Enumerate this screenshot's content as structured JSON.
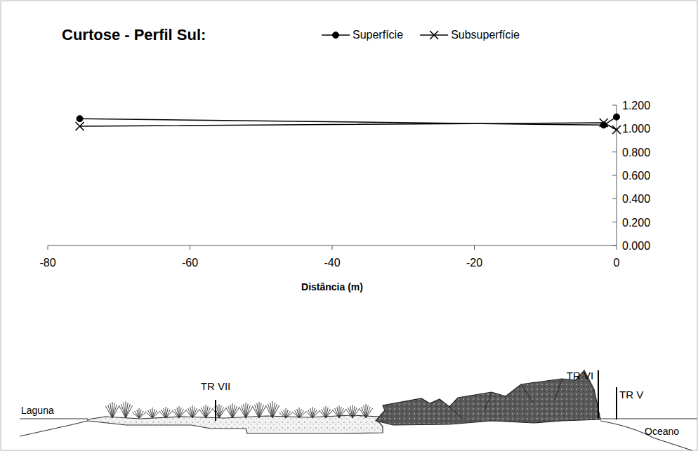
{
  "chart_data": {
    "type": "line",
    "title": "Curtose - Perfil Sul:",
    "x_label": "Distância (m)",
    "x": [
      -75.5,
      -1.8,
      0
    ],
    "series": [
      {
        "name": "Superfície",
        "color": "#000000",
        "marker": "circle",
        "values": [
          1.085,
          1.03,
          1.1
        ]
      },
      {
        "name": "Subsuperfície",
        "color": "#000000",
        "marker": "x",
        "values": [
          1.02,
          1.05,
          0.99
        ]
      }
    ],
    "xlim": [
      -80,
      0
    ],
    "xticks": [
      -80,
      -60,
      -40,
      -20,
      0
    ],
    "ylim": [
      0,
      1.2
    ],
    "yticks": [
      {
        "value": 0,
        "label": "0.000"
      },
      {
        "value": 0.2,
        "label": "0.200"
      },
      {
        "value": 0.4,
        "label": "0.400"
      },
      {
        "value": 0.6,
        "label": "0.600"
      },
      {
        "value": 0.8,
        "label": "0.800"
      },
      {
        "value": 1,
        "label": "1.000"
      },
      {
        "value": 1.2,
        "label": "1.200"
      }
    ],
    "legend": "top"
  },
  "profile_diagram": {
    "left_label": "Laguna",
    "right_label": "Oceano",
    "transects": [
      "TR VII",
      "TR VI",
      "TR V"
    ]
  }
}
